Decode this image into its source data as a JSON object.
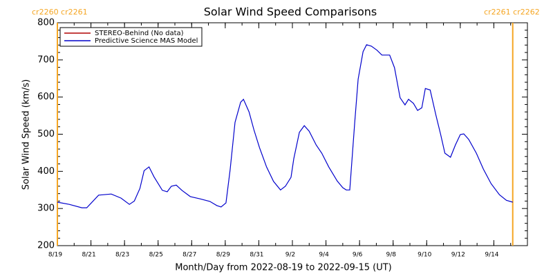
{
  "chart_data": {
    "type": "line",
    "title": "Solar Wind Speed Comparisons",
    "xlabel": "Month/Day from 2022-08-19 to 2022-09-15 (UT)",
    "ylabel": "Solar Wind Speed (km/s)",
    "xlim": [
      "2022-08-19T00:00",
      "2022-09-16T00:00"
    ],
    "xticks": [
      {
        "value": "2022-08-19T00:00",
        "label": "8/19"
      },
      {
        "value": "2022-08-21T00:00",
        "label": "8/21"
      },
      {
        "value": "2022-08-23T00:00",
        "label": "8/23"
      },
      {
        "value": "2022-08-25T00:00",
        "label": "8/25"
      },
      {
        "value": "2022-08-27T00:00",
        "label": "8/27"
      },
      {
        "value": "2022-08-29T00:00",
        "label": "8/29"
      },
      {
        "value": "2022-08-31T00:00",
        "label": "8/31"
      },
      {
        "value": "2022-09-02T00:00",
        "label": "9/2"
      },
      {
        "value": "2022-09-04T00:00",
        "label": "9/4"
      },
      {
        "value": "2022-09-06T00:00",
        "label": "9/6"
      },
      {
        "value": "2022-09-08T00:00",
        "label": "9/8"
      },
      {
        "value": "2022-09-10T00:00",
        "label": "9/10"
      },
      {
        "value": "2022-09-12T00:00",
        "label": "9/12"
      },
      {
        "value": "2022-09-14T00:00",
        "label": "9/14"
      }
    ],
    "ylim": [
      200,
      800
    ],
    "yticks": [
      200,
      300,
      400,
      500,
      600,
      700,
      800
    ],
    "legend": "upper left",
    "annotations": [
      {
        "text": "cr2260 cr2261",
        "x": "2022-08-19T00:00",
        "color": "#f5a623"
      },
      {
        "text": "cr2261 cr2262",
        "x": "2022-09-15T03:00",
        "color": "#f5a623"
      }
    ],
    "series": [
      {
        "name": "STEREO-Behind (No data)",
        "color": "#b00000"
      },
      {
        "name": "Predictive Science MAS Model",
        "color": "#0000cc",
        "x": [
          "2022-08-19T00:00",
          "2022-08-19T17:00",
          "2022-08-20T11:00",
          "2022-08-20T18:00",
          "2022-08-21T11:00",
          "2022-08-22T05:00",
          "2022-08-22T19:00",
          "2022-08-23T07:00",
          "2022-08-23T14:00",
          "2022-08-23T22:00",
          "2022-08-24T04:00",
          "2022-08-24T11:00",
          "2022-08-24T18:00",
          "2022-08-25T06:00",
          "2022-08-25T13:00",
          "2022-08-25T19:00",
          "2022-08-26T02:00",
          "2022-08-26T10:00",
          "2022-08-26T22:00",
          "2022-08-27T12:00",
          "2022-08-28T02:00",
          "2022-08-28T12:00",
          "2022-08-28T18:00",
          "2022-08-29T01:00",
          "2022-08-29T07:00",
          "2022-08-29T14:00",
          "2022-08-29T22:00",
          "2022-08-30T02:00",
          "2022-08-30T10:00",
          "2022-08-30T17:00",
          "2022-08-31T01:00",
          "2022-08-31T11:00",
          "2022-08-31T21:00",
          "2022-09-01T07:00",
          "2022-09-01T14:00",
          "2022-09-01T22:00",
          "2022-09-02T02:00",
          "2022-09-02T10:00",
          "2022-09-02T17:00",
          "2022-09-03T00:00",
          "2022-09-03T10:00",
          "2022-09-03T18:00",
          "2022-09-04T04:00",
          "2022-09-04T16:00",
          "2022-09-05T00:00",
          "2022-09-05T05:00",
          "2022-09-05T10:00",
          "2022-09-05T17:00",
          "2022-09-05T22:00",
          "2022-09-06T05:00",
          "2022-09-06T10:00",
          "2022-09-06T17:00",
          "2022-09-07T01:00",
          "2022-09-07T08:00",
          "2022-09-07T19:00",
          "2022-09-08T02:00",
          "2022-09-08T10:00",
          "2022-09-08T17:00",
          "2022-09-08T22:00",
          "2022-09-09T05:00",
          "2022-09-09T11:00",
          "2022-09-09T17:00",
          "2022-09-09T22:00",
          "2022-09-10T05:00",
          "2022-09-10T13:00",
          "2022-09-10T20:00",
          "2022-09-11T02:00",
          "2022-09-11T10:00",
          "2022-09-11T17:00",
          "2022-09-12T00:00",
          "2022-09-12T05:00",
          "2022-09-12T12:00",
          "2022-09-12T23:00",
          "2022-09-13T09:00",
          "2022-09-13T20:00",
          "2022-09-14T08:00",
          "2022-09-14T18:00",
          "2022-09-15T03:00"
        ],
        "values": [
          317,
          311,
          302,
          302,
          336,
          339,
          328,
          311,
          320,
          354,
          402,
          412,
          386,
          349,
          345,
          360,
          363,
          349,
          332,
          326,
          319,
          308,
          304,
          315,
          404,
          532,
          586,
          594,
          560,
          512,
          464,
          412,
          373,
          350,
          360,
          384,
          434,
          505,
          523,
          508,
          471,
          449,
          412,
          374,
          356,
          350,
          350,
          530,
          648,
          722,
          741,
          737,
          726,
          713,
          713,
          679,
          598,
          579,
          594,
          583,
          564,
          571,
          623,
          619,
          553,
          499,
          449,
          438,
          471,
          499,
          501,
          486,
          449,
          406,
          367,
          337,
          322,
          317
        ]
      }
    ]
  }
}
